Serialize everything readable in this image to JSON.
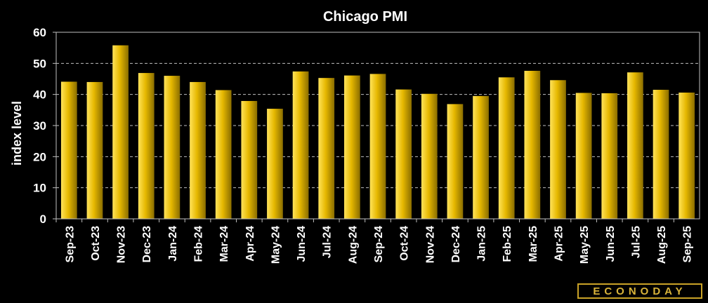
{
  "chart_data": {
    "type": "bar",
    "title": "Chicago PMI",
    "xlabel": "",
    "ylabel": "index level",
    "ylim": [
      0,
      60
    ],
    "yticks": [
      0,
      10,
      20,
      30,
      40,
      50,
      60
    ],
    "grid": true,
    "categories": [
      "Sep-23",
      "Oct-23",
      "Nov-23",
      "Dec-23",
      "Jan-24",
      "Feb-24",
      "Mar-24",
      "Apr-24",
      "May-24",
      "Jun-24",
      "Jul-24",
      "Aug-24",
      "Sep-24",
      "Oct-24",
      "Nov-24",
      "Dec-24",
      "Jan-25",
      "Feb-25",
      "Mar-25",
      "Apr-25",
      "May-25",
      "Jun-25",
      "Jul-25",
      "Aug-25",
      "Sep-25"
    ],
    "values": [
      44.1,
      44.0,
      55.8,
      46.9,
      46.0,
      44.0,
      41.4,
      37.9,
      35.4,
      47.4,
      45.3,
      46.1,
      46.6,
      41.6,
      40.2,
      36.9,
      39.5,
      45.5,
      47.6,
      44.6,
      40.5,
      40.4,
      47.1,
      41.5,
      40.6
    ],
    "colors": {
      "background": "#000000",
      "bar_light": "#ffe35a",
      "bar_mid": "#e6b800",
      "bar_dark": "#8a6d00",
      "grid": "#bfbfbf",
      "text": "#ffffff"
    }
  },
  "logo": {
    "text": "ECONODAY"
  }
}
